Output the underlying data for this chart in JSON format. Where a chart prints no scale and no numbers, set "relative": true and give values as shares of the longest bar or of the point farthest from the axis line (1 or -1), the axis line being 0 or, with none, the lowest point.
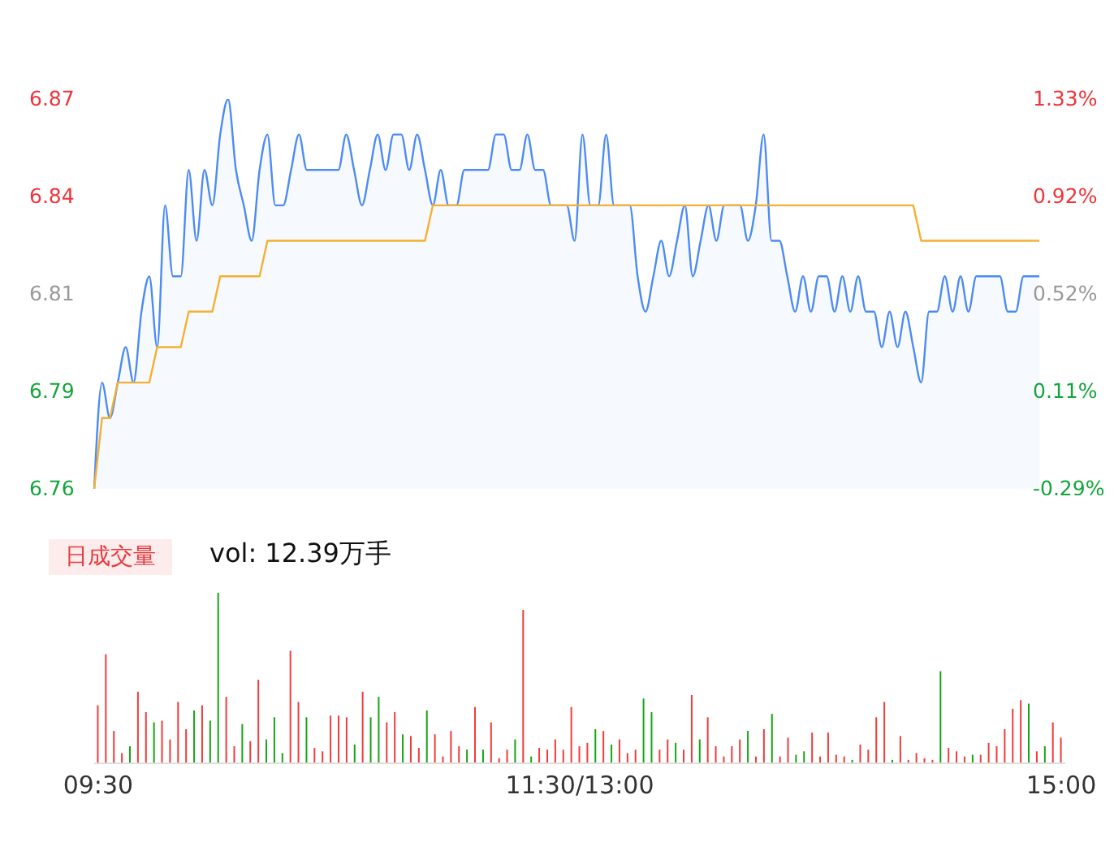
{
  "chart_data": [
    {
      "type": "area",
      "tick_labels": "y",
      "marker": "none",
      "ylim": [
        6.76,
        6.87
      ],
      "yticks": [
        6.76,
        {
          "value": 6.7875,
          "label": "6.79"
        },
        {
          "value": 6.815,
          "label": "6.81"
        },
        {
          "value": 6.8425,
          "label": "6.84"
        },
        6.87
      ],
      "y2lim": [
        -0.29,
        1.33
      ],
      "y2ticks": [
        {
          "value": -0.29,
          "label": "-0.29%"
        },
        {
          "value": 0.115,
          "label": "0.11%"
        },
        {
          "value": 0.52,
          "label": "0.52%"
        },
        {
          "value": 0.925,
          "label": "0.92%"
        },
        {
          "value": 1.33,
          "label": "1.33%"
        }
      ],
      "series": [
        {
          "type": "area",
          "color": "#4c8bf5",
          "values": [
            6.76,
            6.79,
            6.78,
            6.79,
            6.8,
            6.79,
            6.81,
            6.82,
            6.8,
            6.84,
            6.82,
            6.82,
            6.85,
            6.83,
            6.85,
            6.84,
            6.86,
            6.87,
            6.85,
            6.84,
            6.83,
            6.85,
            6.86,
            6.84,
            6.84,
            6.85,
            6.86,
            6.85,
            6.85,
            6.85,
            6.85,
            6.85,
            6.86,
            6.85,
            6.84,
            6.85,
            6.86,
            6.85,
            6.86,
            6.86,
            6.85,
            6.86,
            6.85,
            6.84,
            6.85,
            6.84,
            6.84,
            6.85,
            6.85,
            6.85,
            6.85,
            6.86,
            6.86,
            6.85,
            6.85,
            6.86,
            6.85,
            6.85,
            6.84,
            6.84,
            6.84,
            6.83,
            6.86,
            6.84,
            6.84,
            6.86,
            6.84,
            6.84,
            6.84,
            6.82,
            6.81,
            6.82,
            6.83,
            6.82,
            6.83,
            6.84,
            6.82,
            6.83,
            6.84,
            6.83,
            6.84,
            6.84,
            6.84,
            6.83,
            6.84,
            6.86,
            6.83,
            6.83,
            6.82,
            6.81,
            6.82,
            6.81,
            6.82,
            6.82,
            6.81,
            6.82,
            6.81,
            6.82,
            6.81,
            6.81,
            6.8,
            6.81,
            6.8,
            6.81,
            6.8,
            6.79,
            6.81,
            6.81,
            6.82,
            6.81,
            6.82,
            6.81,
            6.82,
            6.82,
            6.82,
            6.82,
            6.81,
            6.81,
            6.82,
            6.82,
            6.82
          ]
        },
        {
          "type": "line",
          "color": "#f5b031",
          "values": [
            6.76,
            6.78,
            6.78,
            6.79,
            6.79,
            6.79,
            6.79,
            6.79,
            6.8,
            6.8,
            6.8,
            6.8,
            6.81,
            6.81,
            6.81,
            6.81,
            6.82,
            6.82,
            6.82,
            6.82,
            6.82,
            6.82,
            6.83,
            6.83,
            6.83,
            6.83,
            6.83,
            6.83,
            6.83,
            6.83,
            6.83,
            6.83,
            6.83,
            6.83,
            6.83,
            6.83,
            6.83,
            6.83,
            6.83,
            6.83,
            6.83,
            6.83,
            6.83,
            6.84,
            6.84,
            6.84,
            6.84,
            6.84,
            6.84,
            6.84,
            6.84,
            6.84,
            6.84,
            6.84,
            6.84,
            6.84,
            6.84,
            6.84,
            6.84,
            6.84,
            6.84,
            6.84,
            6.84,
            6.84,
            6.84,
            6.84,
            6.84,
            6.84,
            6.84,
            6.84,
            6.84,
            6.84,
            6.84,
            6.84,
            6.84,
            6.84,
            6.84,
            6.84,
            6.84,
            6.84,
            6.84,
            6.84,
            6.84,
            6.84,
            6.84,
            6.84,
            6.84,
            6.84,
            6.84,
            6.84,
            6.84,
            6.84,
            6.84,
            6.84,
            6.84,
            6.84,
            6.84,
            6.84,
            6.84,
            6.84,
            6.84,
            6.84,
            6.84,
            6.84,
            6.84,
            6.83,
            6.83,
            6.83,
            6.83,
            6.83,
            6.83,
            6.83,
            6.83,
            6.83,
            6.83,
            6.83,
            6.83,
            6.83,
            6.83,
            6.83,
            6.83
          ]
        }
      ]
    },
    {
      "type": "bar",
      "relative": true,
      "tick_labels": "x",
      "annotations": [
        "日成交量",
        "vol: 12.39万手"
      ],
      "categories": [
        "09:30",
        null,
        null,
        null,
        null,
        null,
        null,
        null,
        null,
        null,
        null,
        null,
        null,
        null,
        null,
        null,
        null,
        null,
        null,
        null,
        null,
        null,
        null,
        null,
        null,
        null,
        null,
        null,
        null,
        null,
        null,
        null,
        null,
        null,
        null,
        null,
        null,
        null,
        null,
        null,
        null,
        null,
        null,
        null,
        null,
        null,
        null,
        null,
        null,
        null,
        null,
        null,
        null,
        null,
        null,
        null,
        null,
        null,
        null,
        null,
        "11:30/13:00",
        null,
        null,
        null,
        null,
        null,
        null,
        null,
        null,
        null,
        null,
        null,
        null,
        null,
        null,
        null,
        null,
        null,
        null,
        null,
        null,
        null,
        null,
        null,
        null,
        null,
        null,
        null,
        null,
        null,
        null,
        null,
        null,
        null,
        null,
        null,
        null,
        null,
        null,
        null,
        null,
        null,
        null,
        null,
        null,
        null,
        null,
        null,
        null,
        null,
        null,
        null,
        null,
        null,
        null,
        null,
        null,
        null,
        null,
        null,
        "15:00"
      ],
      "values": [
        0.34,
        0.64,
        0.19,
        0.06,
        0.1,
        0.42,
        0.3,
        0.24,
        0.25,
        0.14,
        0.36,
        0.2,
        0.31,
        0.34,
        0.25,
        1,
        0.39,
        0.1,
        0.23,
        0.13,
        0.49,
        0.14,
        0.27,
        0.06,
        0.66,
        0.36,
        0.27,
        0.09,
        0.07,
        0.28,
        0.28,
        0.27,
        0.11,
        0.42,
        0.27,
        0.39,
        0.24,
        0.3,
        0.17,
        0.16,
        0.09,
        0.31,
        0.17,
        0.04,
        0.19,
        0.1,
        0.08,
        0.33,
        0.08,
        0.24,
        0.03,
        0.08,
        0.14,
        0.9,
        0.04,
        0.09,
        0.08,
        0.14,
        0.08,
        0.33,
        0.1,
        0.12,
        0.2,
        0.19,
        0.11,
        0.14,
        0.06,
        0.08,
        0.38,
        0.3,
        0.08,
        0.14,
        0.12,
        0.08,
        0.4,
        0.14,
        0.27,
        0.1,
        0.04,
        0.1,
        0.14,
        0.19,
        0.04,
        0.2,
        0.29,
        0.04,
        0.15,
        0.05,
        0.07,
        0.18,
        0.04,
        0.18,
        0.05,
        0.04,
        0.02,
        0.11,
        0.08,
        0.27,
        0.36,
        0.02,
        0.16,
        0.02,
        0.06,
        0.03,
        0.02,
        0.54,
        0.09,
        0.07,
        0.04,
        0.05,
        0.05,
        0.12,
        0.1,
        0.2,
        0.32,
        0.37,
        0.35,
        0.07,
        0.1,
        0.24,
        0.15
      ],
      "colors": [
        "#f23b3b",
        "#f23b3b",
        "#f23b3b",
        "#f23b3b",
        "#14a514",
        "#f23b3b",
        "#f23b3b",
        "#14a514",
        "#f23b3b",
        "#f23b3b",
        "#f23b3b",
        "#f23b3b",
        "#14a514",
        "#f23b3b",
        "#14a514",
        "#14a514",
        "#f23b3b",
        "#f23b3b",
        "#14a514",
        "#f23b3b",
        "#f23b3b",
        "#14a514",
        "#14a514",
        "#14a514",
        "#f23b3b",
        "#f23b3b",
        "#14a514",
        "#f23b3b",
        "#f23b3b",
        "#f23b3b",
        "#f23b3b",
        "#f23b3b",
        "#14a514",
        "#f23b3b",
        "#14a514",
        "#14a514",
        "#f23b3b",
        "#f23b3b",
        "#14a514",
        "#f23b3b",
        "#f23b3b",
        "#14a514",
        "#f23b3b",
        "#f23b3b",
        "#f23b3b",
        "#f23b3b",
        "#14a514",
        "#f23b3b",
        "#14a514",
        "#f23b3b",
        "#f23b3b",
        "#f23b3b",
        "#14a514",
        "#f23b3b",
        "#14a514",
        "#f23b3b",
        "#f23b3b",
        "#f23b3b",
        "#f23b3b",
        "#f23b3b",
        "#f23b3b",
        "#f23b3b",
        "#14a514",
        "#f23b3b",
        "#14a514",
        "#f23b3b",
        "#f23b3b",
        "#f23b3b",
        "#14a514",
        "#14a514",
        "#f23b3b",
        "#f23b3b",
        "#14a514",
        "#f23b3b",
        "#f23b3b",
        "#14a514",
        "#f23b3b",
        "#f23b3b",
        "#f23b3b",
        "#f23b3b",
        "#f23b3b",
        "#14a514",
        "#f23b3b",
        "#f23b3b",
        "#14a514",
        "#f23b3b",
        "#f23b3b",
        "#14a514",
        "#14a514",
        "#f23b3b",
        "#f23b3b",
        "#f23b3b",
        "#f23b3b",
        "#f23b3b",
        "#14a514",
        "#f23b3b",
        "#f23b3b",
        "#f23b3b",
        "#f23b3b",
        "#14a514",
        "#f23b3b",
        "#f23b3b",
        "#f23b3b",
        "#f23b3b",
        "#f23b3b",
        "#14a514",
        "#f23b3b",
        "#f23b3b",
        "#f23b3b",
        "#14a514",
        "#f23b3b",
        "#f23b3b",
        "#f23b3b",
        "#f23b3b",
        "#f23b3b",
        "#f23b3b",
        "#14a514",
        "#f23b3b",
        "#14a514",
        "#f23b3b",
        "#f23b3b"
      ]
    }
  ]
}
